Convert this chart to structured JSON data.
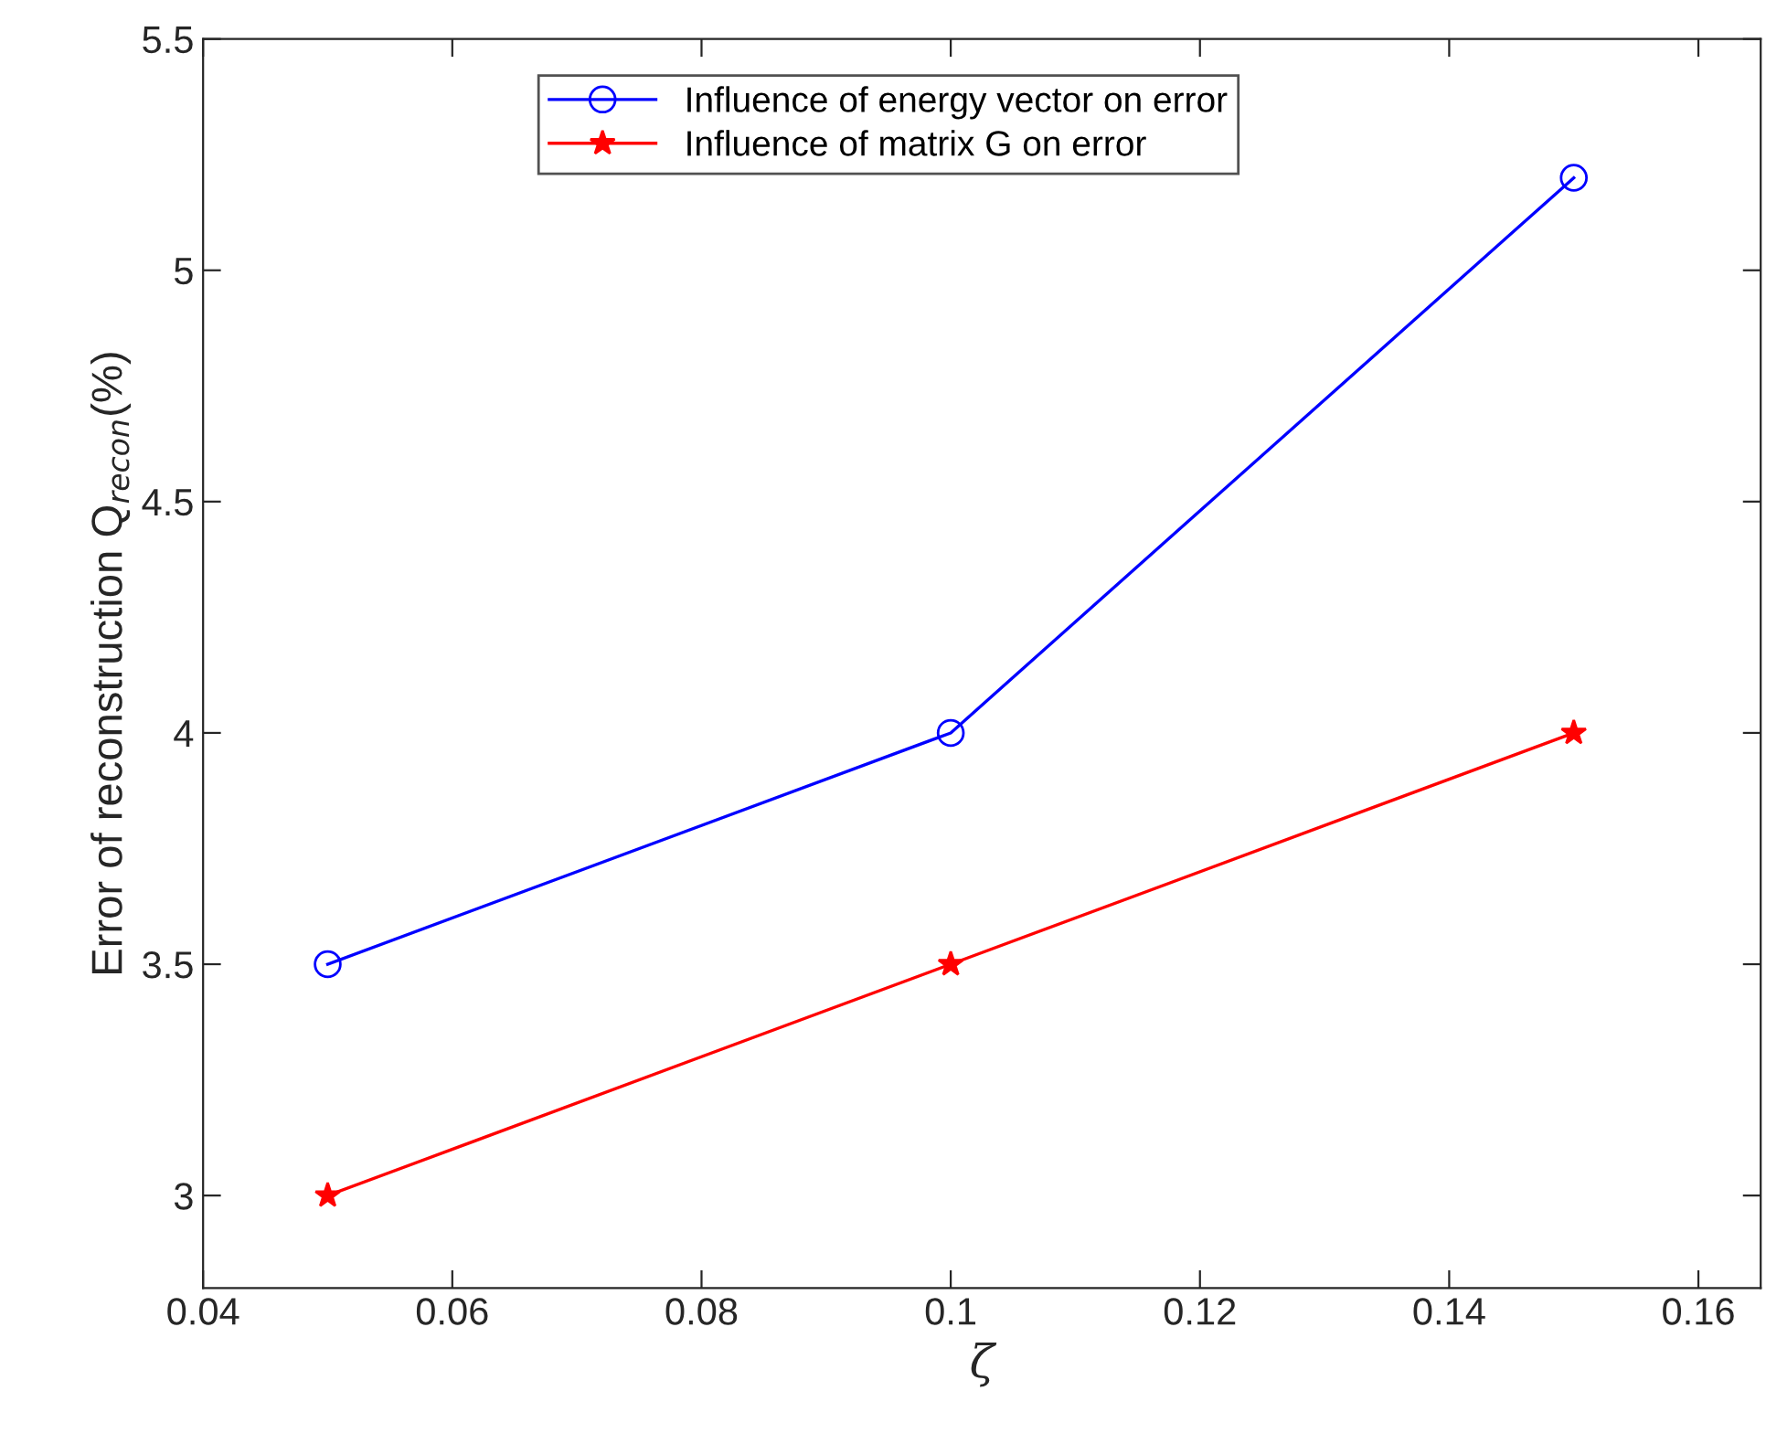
{
  "chart_data": {
    "type": "line",
    "xlabel": "ζ",
    "ylabel": "Error of reconstruction Q$_{recon}$(%)",
    "x": [
      0.05,
      0.1,
      0.15
    ],
    "series": [
      {
        "name": "Influence of energy vector on error",
        "color": "#0000ff",
        "values": [
          3.5,
          4.0,
          5.2
        ],
        "marker": "circle"
      },
      {
        "name": "Influence of matrix G on error",
        "color": "#ff0000",
        "values": [
          3.0,
          3.5,
          4.0
        ],
        "marker": "star"
      }
    ],
    "xlim": [
      0.04,
      0.165
    ],
    "xticks": [
      {
        "value": 0.04,
        "label": "0.04"
      },
      {
        "value": 0.06,
        "label": "0.06"
      },
      {
        "value": 0.08,
        "label": "0.08"
      },
      {
        "value": 0.1,
        "label": "0.1"
      },
      {
        "value": 0.12,
        "label": "0.12"
      },
      {
        "value": 0.14,
        "label": "0.14"
      },
      {
        "value": 0.16,
        "label": "0.16"
      }
    ],
    "ylim": [
      2.8,
      5.5
    ],
    "yticks": [
      3,
      3.5,
      4,
      4.5,
      5,
      5.5
    ],
    "grid": false,
    "legend": "top",
    "line_style": "solid"
  }
}
